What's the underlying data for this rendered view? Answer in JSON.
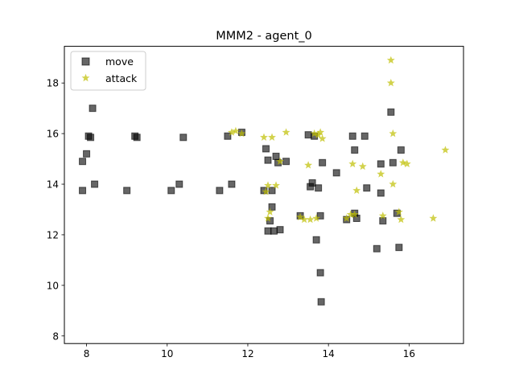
{
  "chart_data": {
    "type": "scatter",
    "title": "MMM2 - agent_0",
    "xlabel": "",
    "ylabel": "",
    "xlim": [
      7.45,
      17.35
    ],
    "ylim": [
      7.7,
      19.45
    ],
    "xticks": [
      8,
      10,
      12,
      14,
      16
    ],
    "yticks": [
      8,
      10,
      12,
      14,
      16,
      18
    ],
    "grid": false,
    "legend_position": "upper left",
    "series": [
      {
        "name": "move",
        "marker": "square",
        "color": "#000000",
        "x": [
          7.9,
          7.9,
          8.0,
          8.05,
          8.1,
          8.15,
          8.2,
          9.0,
          9.2,
          9.25,
          10.1,
          10.3,
          10.4,
          11.3,
          11.5,
          11.6,
          11.85,
          12.4,
          12.45,
          12.5,
          12.5,
          12.55,
          12.6,
          12.6,
          12.65,
          12.7,
          12.75,
          12.8,
          12.95,
          13.3,
          13.5,
          13.55,
          13.6,
          13.65,
          13.7,
          13.75,
          13.8,
          13.8,
          13.82,
          13.85,
          14.2,
          14.45,
          14.6,
          14.65,
          14.65,
          14.7,
          14.9,
          14.95,
          15.2,
          15.3,
          15.3,
          15.35,
          15.55,
          15.6,
          15.7,
          15.75,
          15.8
        ],
        "y": [
          14.9,
          13.75,
          15.2,
          15.9,
          15.85,
          17.0,
          14.0,
          13.75,
          15.9,
          15.85,
          13.75,
          14.0,
          15.85,
          13.75,
          15.9,
          14.0,
          16.05,
          13.75,
          15.4,
          12.15,
          14.95,
          12.55,
          13.1,
          13.75,
          12.15,
          15.1,
          14.85,
          12.2,
          14.9,
          12.75,
          15.95,
          13.9,
          14.05,
          15.9,
          11.8,
          13.85,
          12.75,
          10.5,
          9.35,
          14.85,
          14.45,
          12.6,
          15.9,
          15.35,
          12.85,
          12.65,
          15.9,
          13.85,
          11.45,
          13.65,
          14.8,
          12.55,
          16.85,
          14.85,
          12.85,
          11.5,
          15.35
        ]
      },
      {
        "name": "attack",
        "marker": "star",
        "color": "#bfbf00",
        "x": [
          11.6,
          11.7,
          11.85,
          12.4,
          12.45,
          12.5,
          12.5,
          12.55,
          12.6,
          12.7,
          12.8,
          12.95,
          13.3,
          13.4,
          13.5,
          13.55,
          13.65,
          13.7,
          13.75,
          13.8,
          13.85,
          14.45,
          14.55,
          14.6,
          14.65,
          14.7,
          14.85,
          15.3,
          15.35,
          15.55,
          15.55,
          15.6,
          15.6,
          15.75,
          15.8,
          15.85,
          15.95,
          16.6,
          16.9
        ],
        "y": [
          16.05,
          16.1,
          16.0,
          15.85,
          13.7,
          12.65,
          13.95,
          12.9,
          15.85,
          13.95,
          14.9,
          16.05,
          12.7,
          12.6,
          14.75,
          12.6,
          16.0,
          12.65,
          15.95,
          16.05,
          15.8,
          12.65,
          12.8,
          14.8,
          12.8,
          13.75,
          14.7,
          14.4,
          12.75,
          18.9,
          18.0,
          16.0,
          14.0,
          12.9,
          12.6,
          14.85,
          14.8,
          12.65,
          15.35
        ]
      }
    ]
  }
}
